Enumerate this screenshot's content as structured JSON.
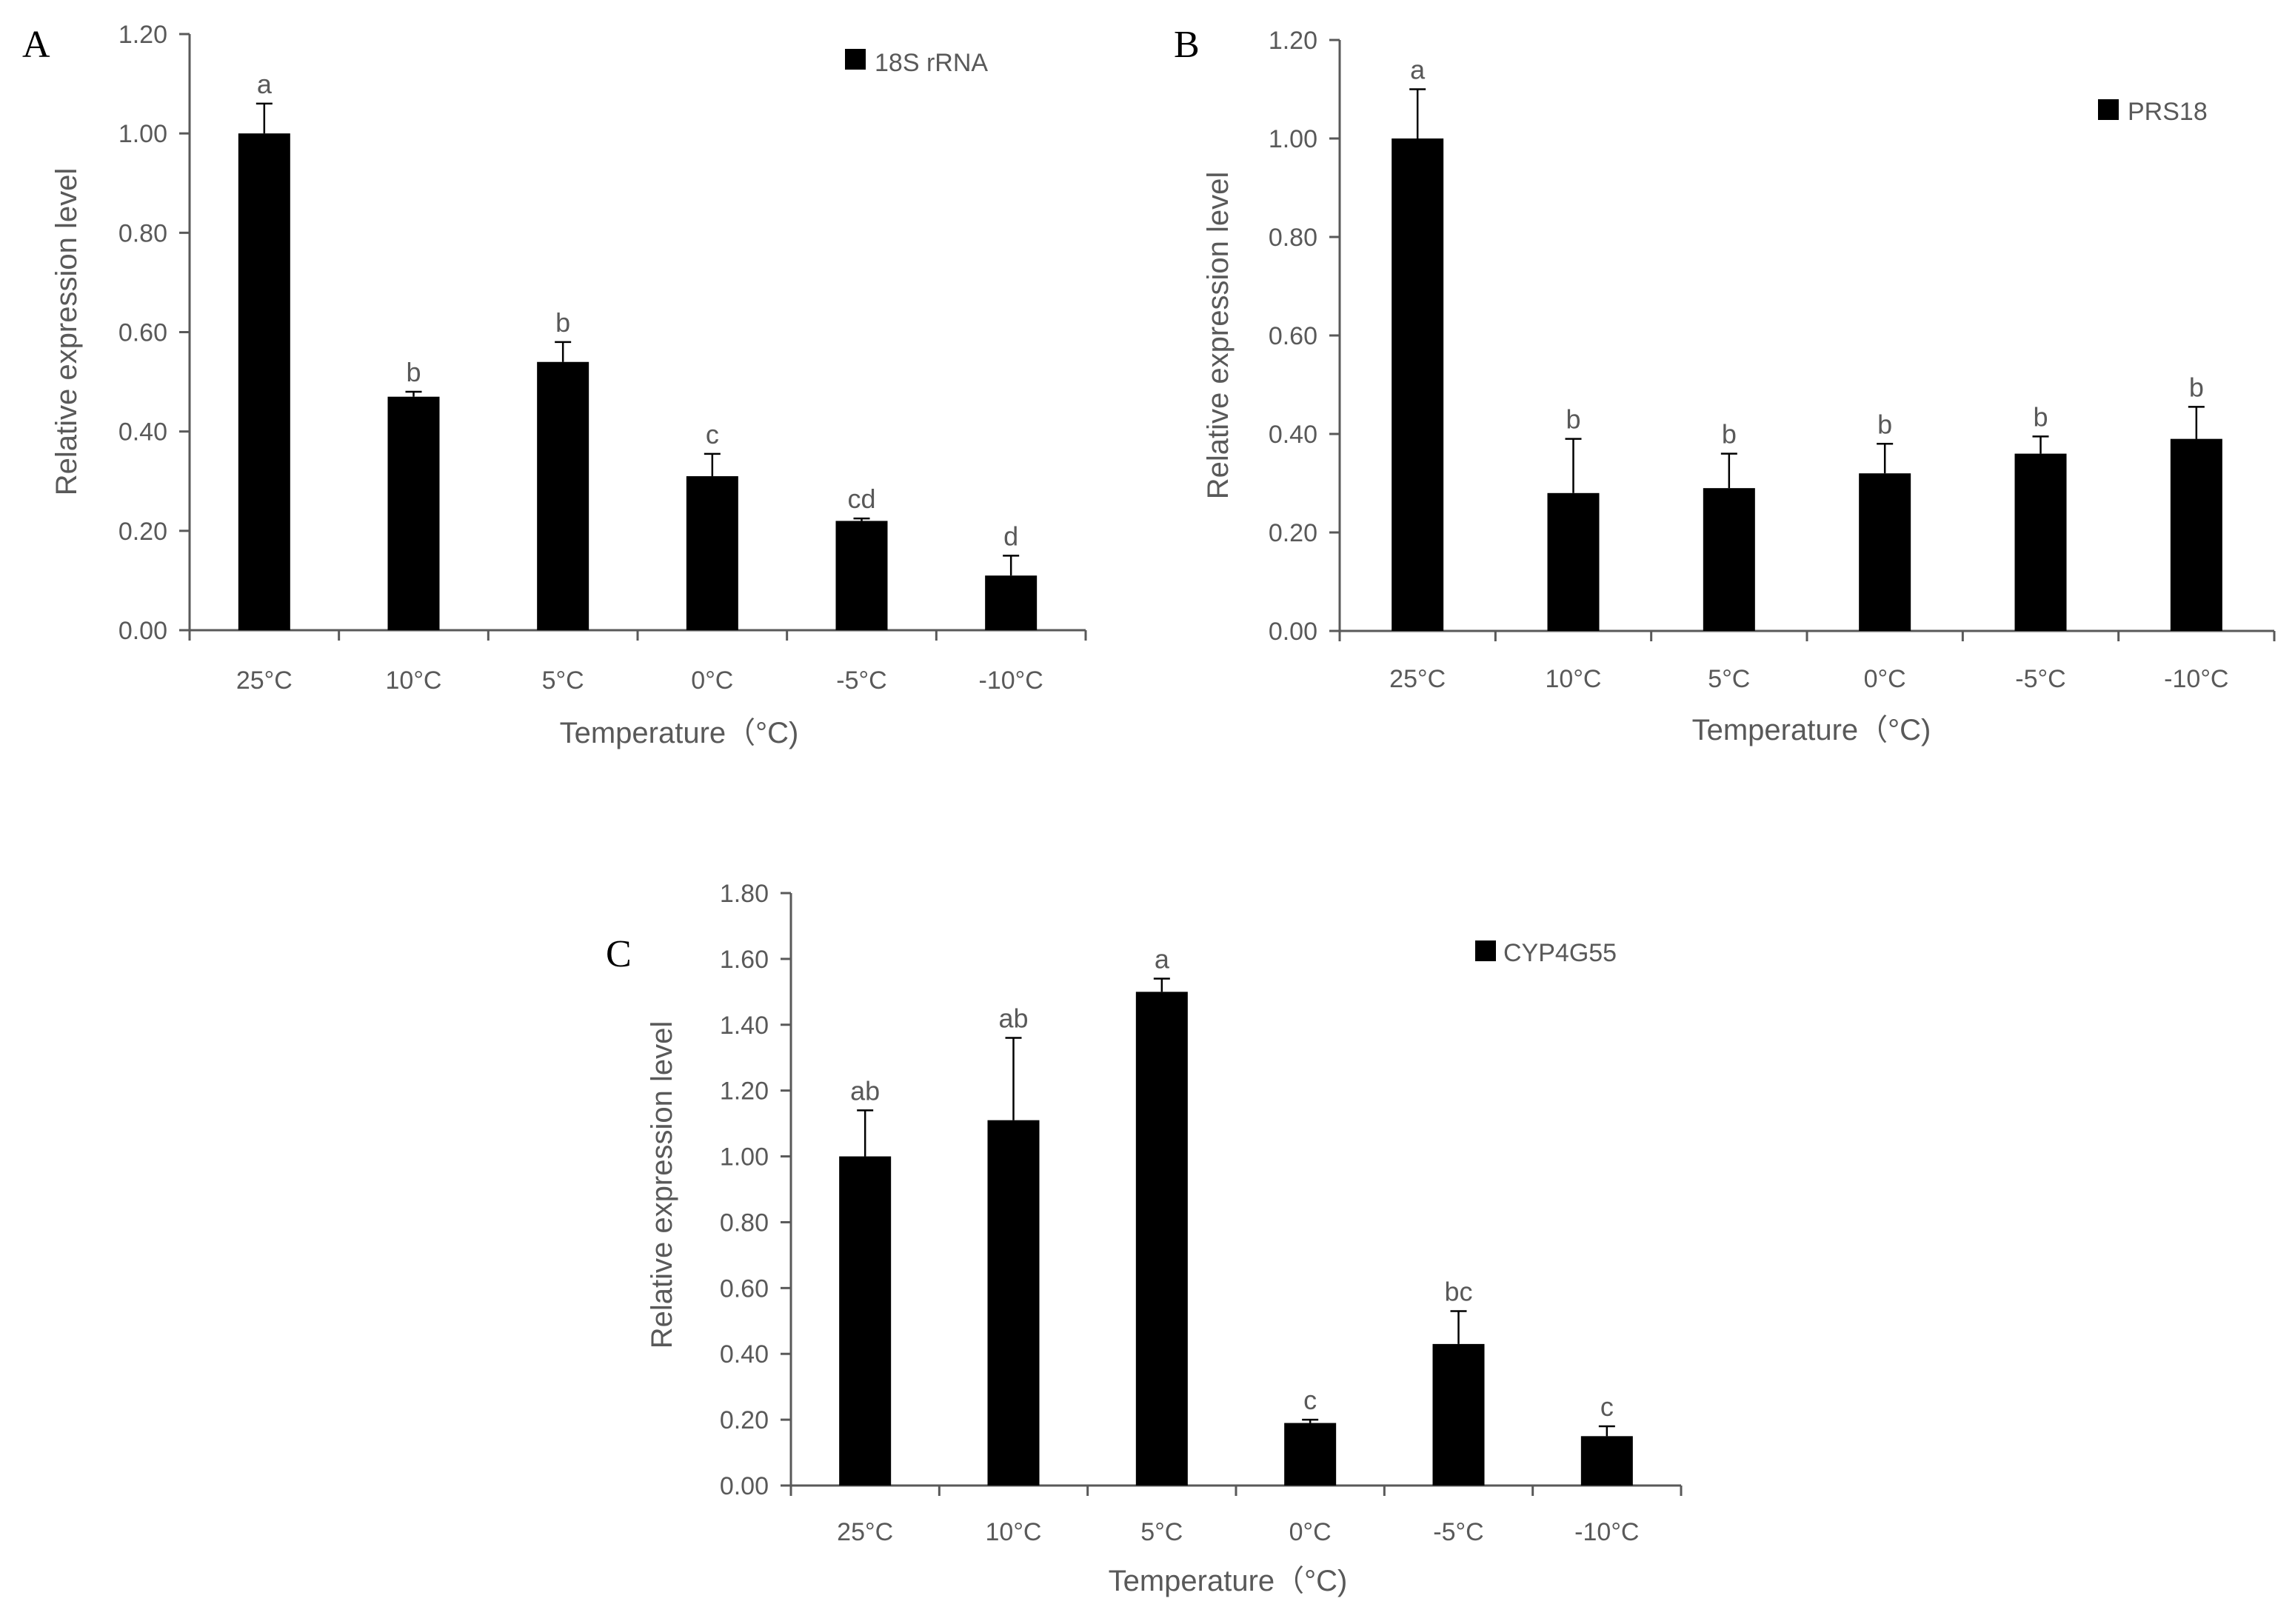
{
  "chart_data": [
    {
      "panel": "A",
      "type": "bar",
      "legend": "18S rRNA",
      "categories": [
        "25°C",
        "10°C",
        "5°C",
        "0°C",
        "-5°C",
        "-10°C"
      ],
      "values": [
        1.0,
        0.47,
        0.54,
        0.31,
        0.22,
        0.11
      ],
      "errors": [
        0.06,
        0.01,
        0.04,
        0.045,
        0.005,
        0.04
      ],
      "letters": [
        "a",
        "b",
        "b",
        "c",
        "cd",
        "d"
      ],
      "xlabel": "Temperature（°C)",
      "ylabel": "Relative expression level",
      "ylim": [
        0,
        1.2
      ],
      "yticks": [
        "0.00",
        "0.20",
        "0.40",
        "0.60",
        "0.80",
        "1.00",
        "1.20"
      ],
      "bar_color": "#000000",
      "axis_color": "#595959"
    },
    {
      "panel": "B",
      "type": "bar",
      "legend": "PRS18",
      "categories": [
        "25°C",
        "10°C",
        "5°C",
        "0°C",
        "-5°C",
        "-10°C"
      ],
      "values": [
        1.0,
        0.28,
        0.29,
        0.32,
        0.36,
        0.39
      ],
      "errors": [
        0.1,
        0.11,
        0.07,
        0.06,
        0.035,
        0.065
      ],
      "letters": [
        "a",
        "b",
        "b",
        "b",
        "b",
        "b"
      ],
      "xlabel": "Temperature（°C)",
      "ylabel": "Relative expression level",
      "ylim": [
        0,
        1.2
      ],
      "yticks": [
        "0.00",
        "0.20",
        "0.40",
        "0.60",
        "0.80",
        "1.00",
        "1.20"
      ],
      "bar_color": "#000000",
      "axis_color": "#595959"
    },
    {
      "panel": "C",
      "type": "bar",
      "legend": "CYP4G55",
      "categories": [
        "25°C",
        "10°C",
        "5°C",
        "0°C",
        "-5°C",
        "-10°C"
      ],
      "values": [
        1.0,
        1.11,
        1.5,
        0.19,
        0.43,
        0.15
      ],
      "errors": [
        0.14,
        0.25,
        0.04,
        0.01,
        0.1,
        0.03
      ],
      "letters": [
        "ab",
        "ab",
        "a",
        "c",
        "bc",
        "c"
      ],
      "xlabel": "Temperature（°C)",
      "ylabel": "Relative expression level",
      "ylim": [
        0,
        1.8
      ],
      "yticks": [
        "0.00",
        "0.20",
        "0.40",
        "0.60",
        "0.80",
        "1.00",
        "1.20",
        "1.40",
        "1.60",
        "1.80"
      ],
      "bar_color": "#000000",
      "axis_color": "#595959"
    }
  ]
}
